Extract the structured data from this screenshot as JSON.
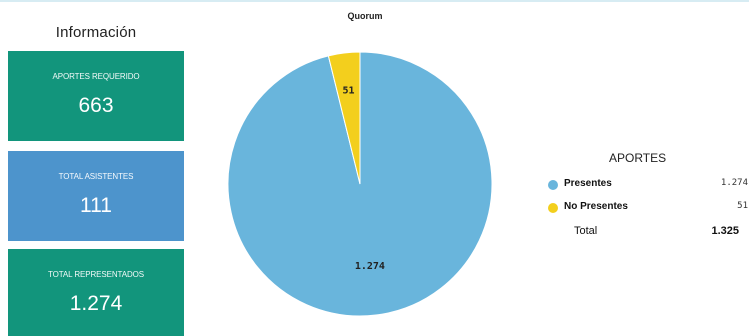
{
  "info": {
    "title": "Información",
    "cards": [
      {
        "label": "APORTES REQUERIDO",
        "value": "663"
      },
      {
        "label": "TOTAL ASISTENTES",
        "value": "111"
      },
      {
        "label": "TOTAL REPRESENTADOS",
        "value": "1.274"
      }
    ]
  },
  "legend": {
    "title": "APORTES",
    "items": [
      {
        "name": "Presentes",
        "value": "1.274"
      },
      {
        "name": "No Presentes",
        "value": "51"
      }
    ],
    "total_label": "Total",
    "total_value": "1.325"
  },
  "chart_data": {
    "type": "pie",
    "title": "Quorum",
    "categories": [
      "Presentes",
      "No Presentes"
    ],
    "values": [
      1274,
      51
    ],
    "data_labels": [
      "1.274",
      "51"
    ],
    "colors": [
      "#69b5dc",
      "#f3cf1d"
    ]
  }
}
